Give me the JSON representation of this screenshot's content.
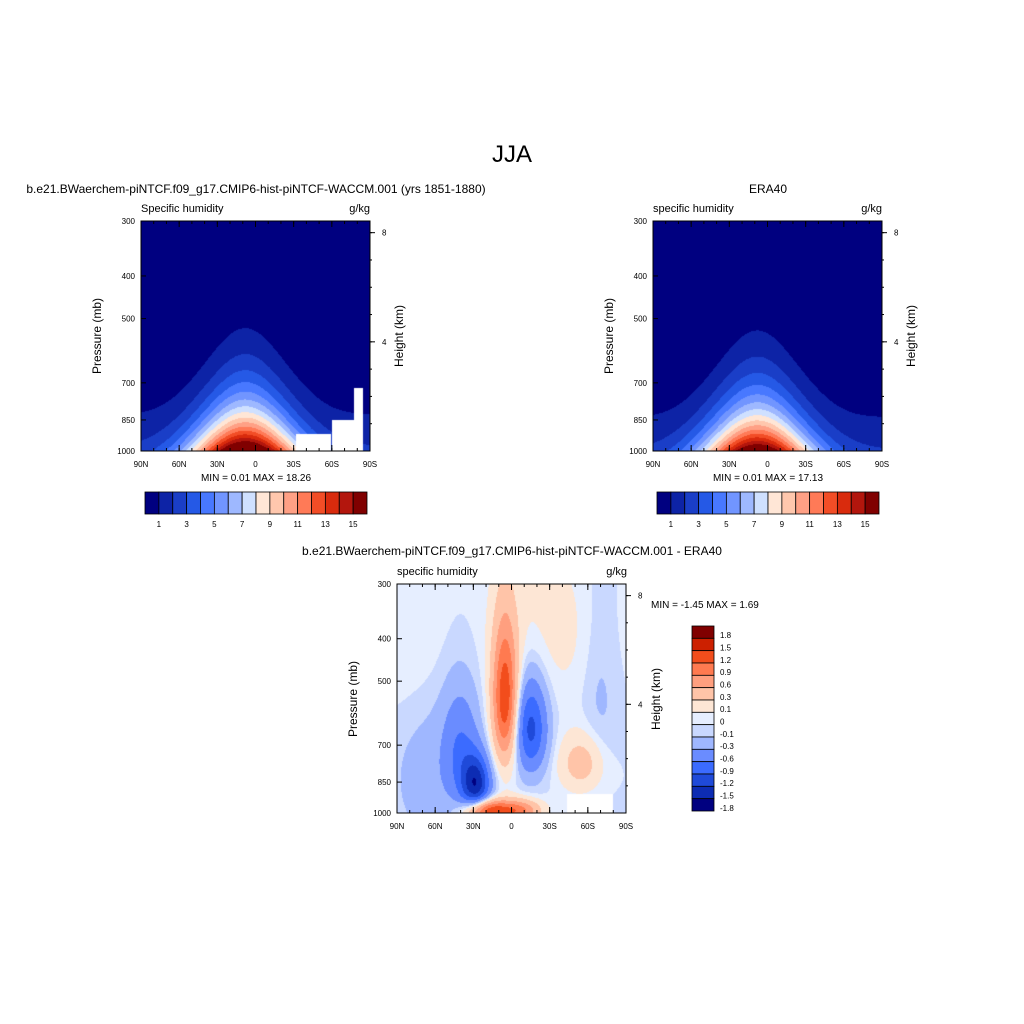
{
  "main_title": "JJA",
  "colors": {
    "seq": [
      "#000080",
      "#0d23a6",
      "#1a3ec7",
      "#2559e6",
      "#4878ff",
      "#7195ff",
      "#9eb8ff",
      "#cfe0ff",
      "#ffe6d6",
      "#ffc7ad",
      "#ffa085",
      "#ff7a57",
      "#f24d26",
      "#d92b0d",
      "#b3160d",
      "#800000"
    ],
    "diff": [
      "#000080",
      "#0d2cb3",
      "#1f4ad9",
      "#3b6bff",
      "#6a8cff",
      "#9fb7ff",
      "#c9d8ff",
      "#e6eeff",
      "#fde6d5",
      "#ffc4a8",
      "#ff9f7f",
      "#ff7a50",
      "#f24d1c",
      "#cc2000",
      "#800000"
    ],
    "mask": "#ffffff"
  },
  "chart_data": [
    {
      "id": "model",
      "type": "heatmap",
      "title": "b.e21.BWaerchem-piNTCF.f09_g17.CMIP6-hist-piNTCF-WACCM.001 (yrs 1851-1880)",
      "left_label": "Specific humidity",
      "units": "g/kg",
      "ylabel": "Pressure (mb)",
      "ylabel_right": "Height (km)",
      "x_ticks": [
        "90N",
        "60N",
        "30N",
        "0",
        "30S",
        "60S",
        "90S"
      ],
      "x_values": [
        90,
        60,
        30,
        0,
        -30,
        -60,
        -90
      ],
      "y_ticks": [
        "300",
        "400",
        "500",
        "700",
        "850",
        "1000"
      ],
      "y_values": [
        300,
        400,
        500,
        700,
        850,
        1000
      ],
      "height_ticks": [
        "8",
        "4"
      ],
      "height_values": [
        8,
        4
      ],
      "xlim": [
        90,
        -90
      ],
      "ylim": [
        300,
        1000
      ],
      "min_max": "MIN =   0.01  MAX =  18.26",
      "peak": 18.26,
      "colorbar_labels": [
        "1",
        "3",
        "5",
        "7",
        "9",
        "11",
        "13",
        "15"
      ]
    },
    {
      "id": "obs",
      "type": "heatmap",
      "title": "ERA40",
      "left_label": "specific humidity",
      "units": "g/kg",
      "ylabel": "Pressure (mb)",
      "ylabel_right": "Height (km)",
      "x_ticks": [
        "90N",
        "60N",
        "30N",
        "0",
        "30S",
        "60S",
        "90S"
      ],
      "x_values": [
        90,
        60,
        30,
        0,
        -30,
        -60,
        -90
      ],
      "y_ticks": [
        "300",
        "400",
        "500",
        "700",
        "850",
        "1000"
      ],
      "y_values": [
        300,
        400,
        500,
        700,
        850,
        1000
      ],
      "height_ticks": [
        "8",
        "4"
      ],
      "height_values": [
        8,
        4
      ],
      "xlim": [
        90,
        -90
      ],
      "ylim": [
        300,
        1000
      ],
      "min_max": "MIN =   0.01  MAX =  17.13",
      "peak": 17.13,
      "colorbar_labels": [
        "1",
        "3",
        "5",
        "7",
        "9",
        "11",
        "13",
        "15"
      ]
    },
    {
      "id": "diff",
      "type": "heatmap",
      "title": "b.e21.BWaerchem-piNTCF.f09_g17.CMIP6-hist-piNTCF-WACCM.001 - ERA40",
      "left_label": "specific humidity",
      "units": "g/kg",
      "ylabel": "Pressure (mb)",
      "ylabel_right": "Height (km)",
      "x_ticks": [
        "90N",
        "60N",
        "30N",
        "0",
        "30S",
        "60S",
        "90S"
      ],
      "x_values": [
        90,
        60,
        30,
        0,
        -30,
        -60,
        -90
      ],
      "y_ticks": [
        "300",
        "400",
        "500",
        "700",
        "850",
        "1000"
      ],
      "y_values": [
        300,
        400,
        500,
        700,
        850,
        1000
      ],
      "height_ticks": [
        "8",
        "4"
      ],
      "height_values": [
        8,
        4
      ],
      "xlim": [
        90,
        -90
      ],
      "ylim": [
        300,
        1000
      ],
      "min_max": "MIN =  -1.45  MAX =   1.69",
      "levels": [
        "1.8",
        "1.5",
        "1.2",
        "0.9",
        "0.6",
        "0.3",
        "0.1",
        "0",
        "-0.1",
        "-0.3",
        "-0.6",
        "-0.9",
        "-1.2",
        "-1.5",
        "-1.8"
      ]
    }
  ]
}
